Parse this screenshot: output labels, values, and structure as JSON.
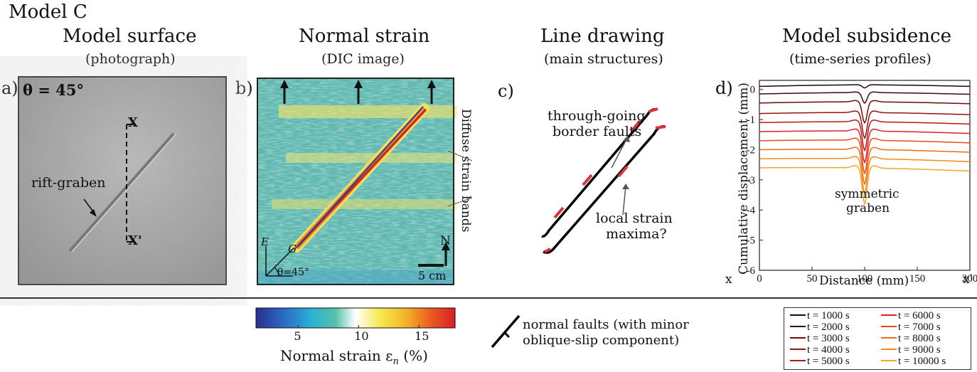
{
  "figure": {
    "model_title": "Model C",
    "panels": {
      "a": {
        "letter": "a)",
        "title": "Model surface",
        "subtitle": "(photograph)",
        "theta_label": "θ = 45°",
        "graben_label": "rift-graben",
        "x_label": "X",
        "x_prime_label": "X'"
      },
      "b": {
        "letter": "b)",
        "title": "Normal strain",
        "subtitle": "(DIC image)",
        "side_label": "Diffuse strain bands",
        "scale_label": "5 cm",
        "north_label": "N",
        "axis_e": "E",
        "axis_g": "G",
        "theta_label": "θ=45°"
      },
      "c": {
        "letter": "c)",
        "title": "Line drawing",
        "subtitle": "(main structures)",
        "faults_label_1": "through-going",
        "faults_label_2": "border faults",
        "strain_label_1": "local strain",
        "strain_label_2": "maxima?"
      },
      "d": {
        "letter": "d)",
        "title": "Model subsidence",
        "subtitle": "(time-series profiles)",
        "annotation_1": "symmetric",
        "annotation_2": "graben",
        "x_label": "x",
        "x_prime_label": "x'"
      }
    },
    "colorbar": {
      "label": "Normal strain ε",
      "label_sub": "n",
      "label_unit": "(%)",
      "ticks": [
        "5",
        "10",
        "15"
      ],
      "tick_values": [
        5,
        10,
        15
      ],
      "range": [
        1.5,
        18
      ]
    },
    "fault_legend": {
      "line1": "normal faults (with minor",
      "line2": "oblique-slip component)"
    },
    "colors": {
      "fault_black": "#000000",
      "strain_red": "#e0303a"
    }
  },
  "chart_data": {
    "type": "line",
    "title": "",
    "xlabel": "Distance (mm)",
    "ylabel": "Cumulative displacement (mm)",
    "xlim": [
      0,
      200
    ],
    "ylim": [
      -6,
      0.3
    ],
    "x_ticks": [
      0,
      50,
      100,
      150,
      200
    ],
    "y_ticks": [
      0,
      -1,
      -2,
      -3,
      -4,
      -5,
      -6
    ],
    "x_tick_labels": [
      "0",
      "50",
      "100",
      "150",
      "200"
    ],
    "y_tick_labels": [
      "0",
      "-1",
      "-2",
      "-3",
      "-4",
      "-5",
      "-6"
    ],
    "grid": false,
    "legend_position": "below-right",
    "trough_center": 100,
    "series": [
      {
        "name": "t = 1000 s",
        "color": "#1a0a0a",
        "baseline": 0.1,
        "trough_depth": 0.1
      },
      {
        "name": "t = 2000 s",
        "color": "#3d0c0c",
        "baseline": -0.15,
        "trough_depth": 0.35
      },
      {
        "name": "t = 3000 s",
        "color": "#6a0d0d",
        "baseline": -0.45,
        "trough_depth": 0.7
      },
      {
        "name": "t = 4000 s",
        "color": "#9a1010",
        "baseline": -0.8,
        "trough_depth": 0.85
      },
      {
        "name": "t = 5000 s",
        "color": "#c01515",
        "baseline": -1.1,
        "trough_depth": 0.95
      },
      {
        "name": "t = 6000 s",
        "color": "#e0202a",
        "baseline": -1.4,
        "trough_depth": 1.05
      },
      {
        "name": "t = 7000 s",
        "color": "#ee4a1a",
        "baseline": -1.7,
        "trough_depth": 1.1
      },
      {
        "name": "t = 8000 s",
        "color": "#f26a18",
        "baseline": -2.0,
        "trough_depth": 1.15
      },
      {
        "name": "t = 9000 s",
        "color": "#f48a1a",
        "baseline": -2.3,
        "trough_depth": 1.15
      },
      {
        "name": "t = 10000 s",
        "color": "#f5a623",
        "baseline": -2.6,
        "trough_depth": 1.2
      }
    ]
  }
}
